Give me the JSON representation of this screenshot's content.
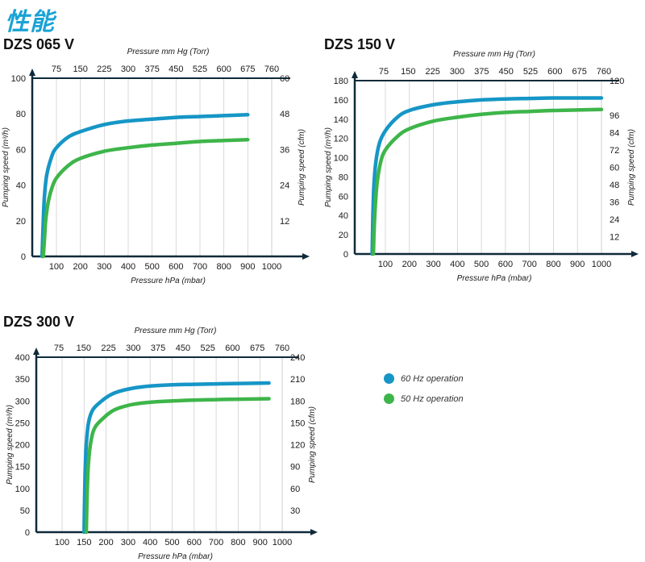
{
  "page": {
    "title": "性能"
  },
  "colors": {
    "hz60": "#1696c6",
    "hz50": "#3eb54a",
    "axis": "#0e2a3a"
  },
  "legend": [
    {
      "label": "60 Hz operation",
      "color": "#1696c6"
    },
    {
      "label": "50 Hz operation",
      "color": "#3eb54a"
    }
  ],
  "chart_data": [
    {
      "type": "line",
      "title": "DZS 065 V",
      "xlabel": "Pressure hPa (mbar)",
      "x2label": "Pressure mm Hg (Torr)",
      "ylabel": "Pumping speed (m³/h)",
      "y2label": "Pumping speed (cfm)",
      "xticks": [
        "100",
        "200",
        "300",
        "400",
        "500",
        "600",
        "700",
        "800",
        "900",
        "1000"
      ],
      "x2ticks": [
        "75",
        "150",
        "225",
        "300",
        "375",
        "450",
        "525",
        "600",
        "675",
        "760"
      ],
      "yticks": [
        "0",
        "20",
        "40",
        "60",
        "80",
        "100"
      ],
      "y2ticks": [
        "12",
        "24",
        "36",
        "48",
        "60"
      ],
      "xlim": [
        0,
        1000
      ],
      "ylim": [
        0,
        100
      ],
      "y2lim": [
        0,
        60
      ],
      "series": [
        {
          "name": "60 Hz operation",
          "x": [
            40,
            45,
            50,
            60,
            80,
            100,
            150,
            200,
            300,
            400,
            500,
            600,
            700,
            800,
            900
          ],
          "y": [
            0,
            20,
            34,
            46,
            56,
            61,
            67,
            70,
            74,
            76,
            77,
            78,
            78.5,
            79,
            79.5
          ]
        },
        {
          "name": "50 Hz operation",
          "x": [
            45,
            50,
            55,
            65,
            80,
            100,
            150,
            200,
            300,
            400,
            500,
            600,
            700,
            800,
            900
          ],
          "y": [
            0,
            10,
            20,
            30,
            38,
            44,
            51,
            55,
            59,
            61,
            62.5,
            63.5,
            64.5,
            65,
            65.5
          ]
        }
      ]
    },
    {
      "type": "line",
      "title": "DZS 150 V",
      "xlabel": "Pressure hPa (mbar)",
      "x2label": "Pressure mm Hg (Torr)",
      "ylabel": "Pumping speed (m³/h)",
      "y2label": "Pumping speed (cfm)",
      "xticks": [
        "100",
        "200",
        "300",
        "400",
        "500",
        "600",
        "700",
        "800",
        "900",
        "1000"
      ],
      "x2ticks": [
        "75",
        "150",
        "225",
        "300",
        "375",
        "450",
        "525",
        "600",
        "675",
        "760"
      ],
      "yticks": [
        "0",
        "20",
        "40",
        "60",
        "80",
        "100",
        "120",
        "140",
        "160",
        "180"
      ],
      "y2ticks": [
        "12",
        "24",
        "36",
        "48",
        "60",
        "72",
        "84",
        "96",
        "120"
      ],
      "xlim": [
        0,
        1000
      ],
      "ylim": [
        0,
        180
      ],
      "y2lim": [
        0,
        120
      ],
      "series": [
        {
          "name": "60 Hz operation",
          "x": [
            45,
            48,
            52,
            60,
            75,
            100,
            150,
            200,
            300,
            400,
            500,
            600,
            700,
            800,
            900,
            1000
          ],
          "y": [
            0,
            40,
            70,
            95,
            115,
            128,
            142,
            149,
            155,
            158,
            160,
            161,
            161.5,
            162,
            162,
            162
          ]
        },
        {
          "name": "50 Hz operation",
          "x": [
            50,
            53,
            58,
            66,
            80,
            100,
            150,
            200,
            300,
            400,
            500,
            600,
            700,
            800,
            900,
            1000
          ],
          "y": [
            0,
            25,
            50,
            75,
            95,
            108,
            122,
            130,
            138,
            142,
            145,
            147,
            148,
            149,
            149.5,
            150
          ]
        }
      ]
    },
    {
      "type": "line",
      "title": "DZS 300 V",
      "xlabel": "Pressure hPa (mbar)",
      "x2label": "Pressure mm Hg (Torr)",
      "ylabel": "Pumping speed (m³/h)",
      "y2label": "Pumping speed (cfm)",
      "xticks": [
        "100",
        "150",
        "200",
        "300",
        "400",
        "500",
        "600",
        "700",
        "800",
        "900",
        "1000"
      ],
      "x2ticks": [
        "75",
        "150",
        "225",
        "300",
        "375",
        "450",
        "525",
        "600",
        "675",
        "760"
      ],
      "yticks": [
        "0",
        "50",
        "100",
        "150",
        "200",
        "250",
        "300",
        "350",
        "400"
      ],
      "y2ticks": [
        "30",
        "60",
        "90",
        "120",
        "150",
        "180",
        "210",
        "240"
      ],
      "xlim": [
        0,
        1000
      ],
      "ylim": [
        0,
        400
      ],
      "y2lim": [
        0,
        240
      ],
      "series": [
        {
          "name": "60 Hz operation",
          "x": [
            150,
            152,
            155,
            160,
            170,
            190,
            220,
            260,
            320,
            400,
            500,
            600,
            700,
            800,
            940
          ],
          "y": [
            0,
            120,
            200,
            250,
            280,
            300,
            314,
            322,
            329,
            334,
            337,
            338,
            339,
            340,
            341
          ]
        },
        {
          "name": "50 Hz operation",
          "x": [
            155,
            157,
            160,
            166,
            175,
            195,
            225,
            260,
            320,
            400,
            500,
            600,
            700,
            800,
            940
          ],
          "y": [
            0,
            90,
            160,
            210,
            240,
            262,
            276,
            284,
            292,
            297,
            300,
            302,
            303,
            304,
            305
          ]
        }
      ]
    }
  ]
}
